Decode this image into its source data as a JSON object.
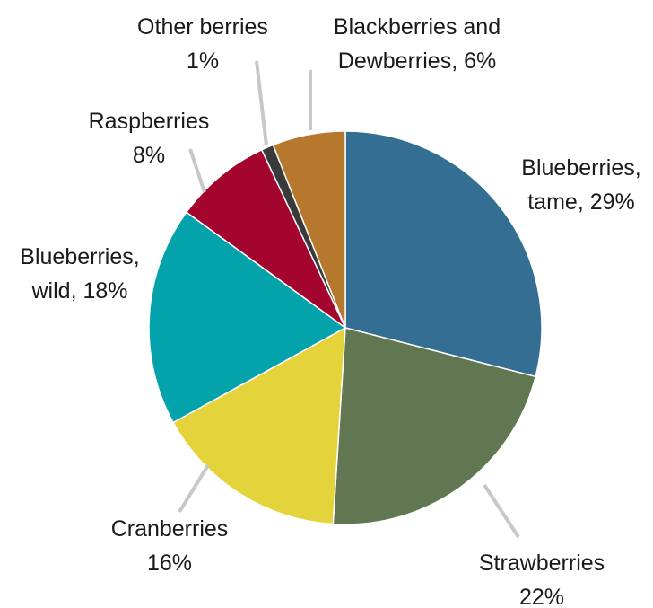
{
  "chart_data": {
    "type": "pie",
    "title": "",
    "slices": [
      {
        "name": "Blueberries, tame",
        "value": 29,
        "label_lines": [
          "Blueberries,",
          "tame, 29%"
        ],
        "color": "#346f93"
      },
      {
        "name": "Strawberries",
        "value": 22,
        "label_lines": [
          "Strawberries",
          "22%"
        ],
        "color": "#617751"
      },
      {
        "name": "Cranberries",
        "value": 16,
        "label_lines": [
          "Cranberries",
          "16%"
        ],
        "color": "#e4d33a"
      },
      {
        "name": "Blueberries, wild",
        "value": 18,
        "label_lines": [
          "Blueberries,",
          "wild, 18%"
        ],
        "color": "#04a3ac"
      },
      {
        "name": "Raspberries",
        "value": 8,
        "label_lines": [
          "Raspberries",
          "8%"
        ],
        "color": "#a4052f"
      },
      {
        "name": "Other berries",
        "value": 1,
        "label_lines": [
          "Other berries",
          "1%"
        ],
        "color": "#3a3a3a"
      },
      {
        "name": "Blackberries and Dewberries",
        "value": 6,
        "label_lines": [
          "Blackberries and",
          "Dewberries, 6%"
        ],
        "color": "#b6782c"
      }
    ]
  }
}
